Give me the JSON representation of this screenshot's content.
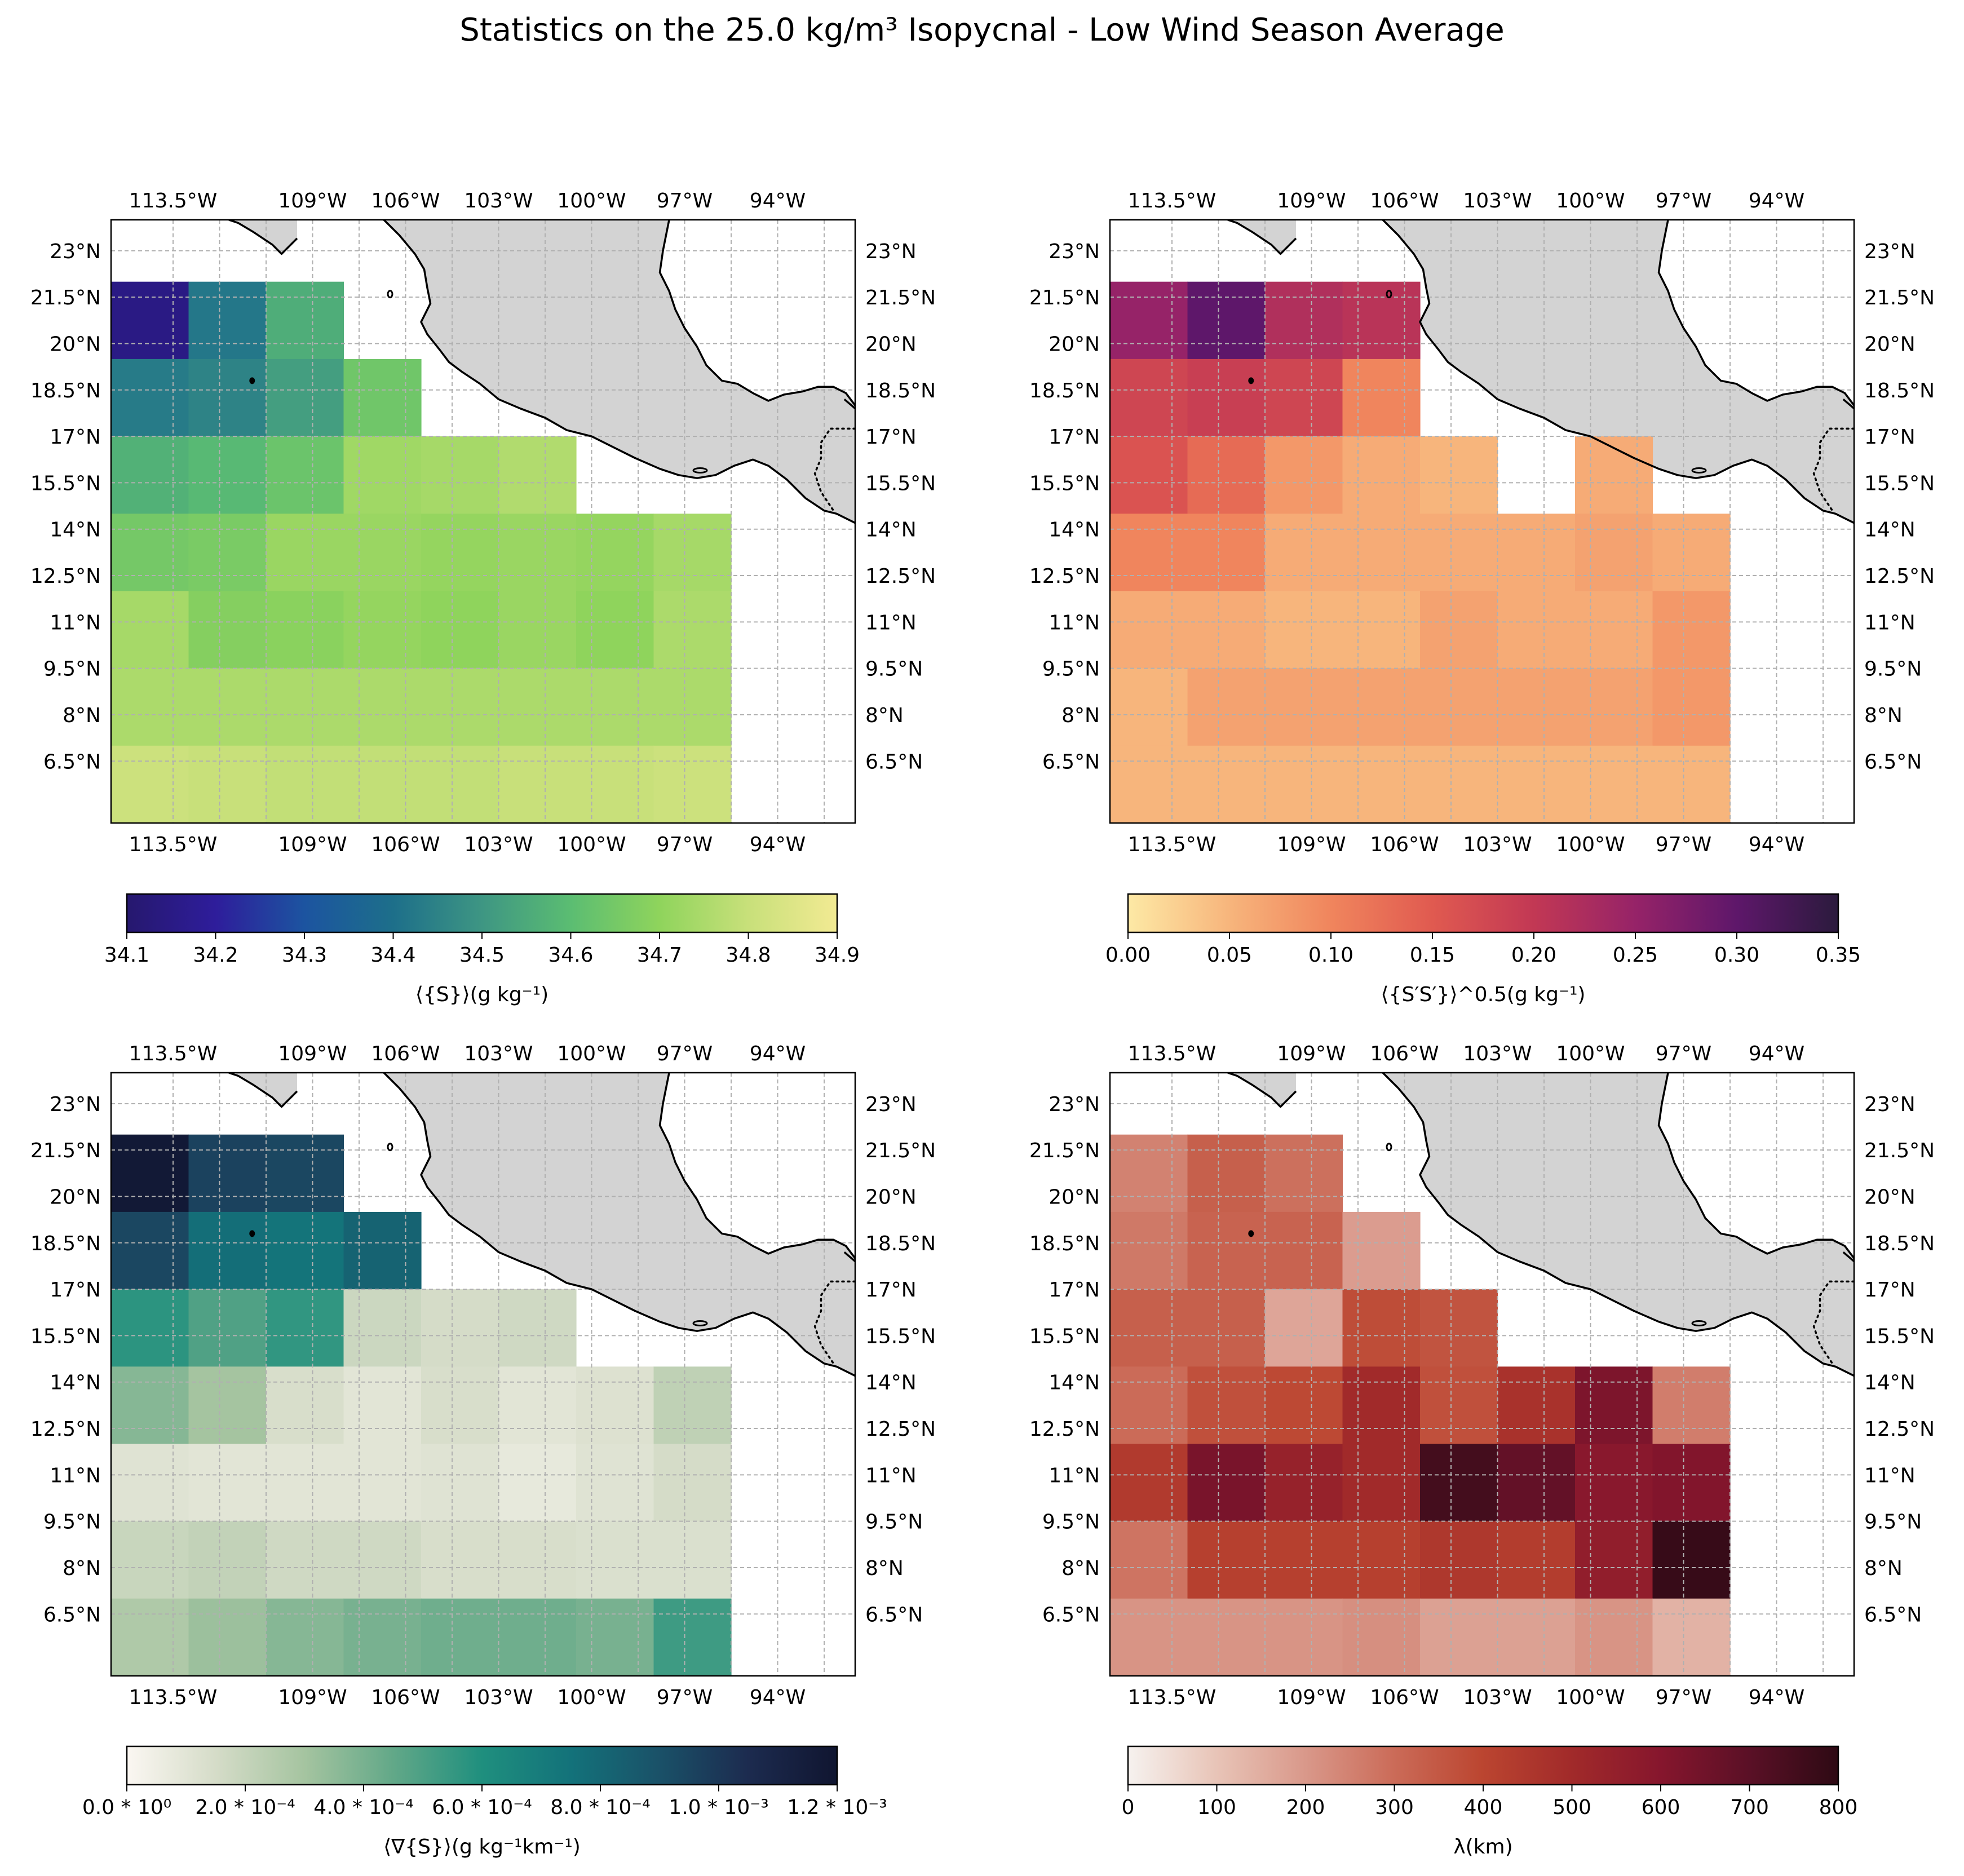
{
  "figure_title": "Statistics on the 25.0 kg/m³ Isopycnal - Low Wind Season Average",
  "map": {
    "lon_ticks": [
      "113.5°W",
      "109°W",
      "106°W",
      "103°W",
      "100°W",
      "97°W",
      "94°W"
    ],
    "lon_tick_values": [
      -113.5,
      -109,
      -106,
      -103,
      -100,
      -97,
      -94
    ],
    "lat_ticks": [
      "23°N",
      "21.5°N",
      "20°N",
      "18.5°N",
      "17°N",
      "15.5°N",
      "14°N",
      "12.5°N",
      "11°N",
      "9.5°N",
      "8°N",
      "6.5°N"
    ],
    "lat_tick_values": [
      23,
      21.5,
      20,
      18.5,
      17,
      15.5,
      14,
      12.5,
      11,
      9.5,
      8,
      6.5
    ],
    "lon_range": [
      -115.5,
      -91.5
    ],
    "lat_range": [
      4.5,
      24
    ],
    "cell_lon_edges": [
      -115.5,
      -113,
      -110.5,
      -108,
      -105.5,
      -103,
      -100.5,
      -98,
      -95.5
    ],
    "cell_lat_edges": [
      22,
      19.5,
      17,
      14.5,
      12,
      9.5,
      7,
      4.5
    ],
    "land_color": "#d3d3d3",
    "coast_color": "#000000",
    "grid_color": "#b0b0b0"
  },
  "chart_data": [
    {
      "type": "heatmap",
      "panel": "top-left",
      "colorbar_label": "⟨{S}⟩(g kg⁻¹)",
      "colorbar_ticks": [
        "34.1",
        "34.2",
        "34.3",
        "34.4",
        "34.5",
        "34.6",
        "34.7",
        "34.8",
        "34.9"
      ],
      "vmin": 34.1,
      "vmax": 34.9,
      "colormap": [
        "#26186e",
        "#2e1d9b",
        "#1c54a0",
        "#1d6f8a",
        "#3e9683",
        "#5bbd72",
        "#8fd45c",
        "#c8e07a",
        "#f2ea93"
      ],
      "rows": [
        [
          34.15,
          34.42,
          34.56,
          null,
          null,
          null,
          null,
          null
        ],
        [
          34.43,
          34.45,
          34.52,
          34.64,
          null,
          null,
          null,
          null
        ],
        [
          34.57,
          34.59,
          34.63,
          34.73,
          34.74,
          34.76,
          null,
          null
        ],
        [
          34.65,
          34.66,
          34.72,
          34.72,
          34.71,
          34.72,
          34.71,
          34.74
        ],
        [
          34.74,
          34.68,
          34.69,
          34.71,
          34.7,
          34.72,
          34.7,
          34.75
        ],
        [
          34.75,
          34.75,
          34.75,
          34.75,
          34.75,
          34.75,
          34.75,
          34.75
        ],
        [
          34.81,
          34.8,
          34.79,
          34.79,
          34.79,
          34.8,
          34.8,
          34.81
        ]
      ]
    },
    {
      "type": "heatmap",
      "panel": "top-right",
      "colorbar_label": "⟨{S′S′}⟩^0.5(g kg⁻¹)",
      "colorbar_ticks": [
        "0.00",
        "0.05",
        "0.10",
        "0.15",
        "0.20",
        "0.25",
        "0.30",
        "0.35"
      ],
      "vmin": 0.0,
      "vmax": 0.35,
      "colormap": [
        "#fde9a5",
        "#f7b57c",
        "#f0855d",
        "#e05a50",
        "#c23854",
        "#962368",
        "#5e176a",
        "#2b1a3d"
      ],
      "rows": [
        [
          0.25,
          0.3,
          0.22,
          0.21,
          null,
          null,
          null,
          null
        ],
        [
          0.18,
          0.19,
          0.18,
          0.1,
          null,
          null,
          null,
          null
        ],
        [
          0.16,
          0.13,
          0.08,
          0.06,
          0.05,
          null,
          0.06,
          null
        ],
        [
          0.1,
          0.1,
          0.06,
          0.06,
          0.06,
          0.06,
          0.07,
          0.06
        ],
        [
          0.06,
          0.06,
          0.05,
          0.05,
          0.07,
          0.06,
          0.06,
          0.08
        ],
        [
          0.05,
          0.07,
          0.07,
          0.07,
          0.07,
          0.07,
          0.07,
          0.08
        ],
        [
          0.05,
          0.05,
          0.05,
          0.05,
          0.05,
          0.05,
          0.05,
          0.05
        ]
      ]
    },
    {
      "type": "heatmap",
      "panel": "bottom-left",
      "colorbar_label": "⟨∇{S}⟩(g kg⁻¹km⁻¹)",
      "colorbar_ticks": [
        "0.0 * 10⁰",
        "2.0 * 10⁻⁴",
        "4.0 * 10⁻⁴",
        "6.0 * 10⁻⁴",
        "8.0 * 10⁻⁴",
        "1.0 * 10⁻³",
        "1.2 * 10⁻³"
      ],
      "vmin": 0.0,
      "vmax": 0.0012,
      "colormap": [
        "#fbf7f2",
        "#d5dcc8",
        "#a5c4a0",
        "#62a888",
        "#1f8f7e",
        "#13727a",
        "#1a5168",
        "#1c2b4f",
        "#101530"
      ],
      "rows": [
        [
          0.00117,
          0.00096,
          0.00094,
          null,
          null,
          null,
          null,
          null
        ],
        [
          0.00094,
          0.00077,
          0.00074,
          0.00082,
          null,
          null,
          null,
          null
        ],
        [
          0.00057,
          0.00049,
          0.00056,
          0.00018,
          0.00015,
          0.00017,
          null,
          null
        ],
        [
          0.00037,
          0.0003,
          0.00014,
          0.0001,
          0.00014,
          0.0001,
          0.00012,
          0.00022
        ],
        [
          0.00011,
          0.0001,
          0.0001,
          0.0001,
          0.00011,
          8e-05,
          0.00011,
          0.00015
        ],
        [
          0.00019,
          0.00021,
          0.00017,
          0.00017,
          0.00014,
          0.00014,
          0.00013,
          0.00013
        ],
        [
          0.00027,
          0.00032,
          0.00037,
          0.0004,
          0.00042,
          0.00042,
          0.0004,
          0.00053
        ]
      ]
    },
    {
      "type": "heatmap",
      "panel": "bottom-right",
      "colorbar_label": "λ(km)",
      "colorbar_ticks": [
        "0",
        "100",
        "200",
        "300",
        "400",
        "500",
        "600",
        "700",
        "800"
      ],
      "vmin": 0,
      "vmax": 800,
      "colormap": [
        "#f6f2ef",
        "#e8c4b7",
        "#d9988a",
        "#cb6b58",
        "#bb4530",
        "#a12a2a",
        "#86162d",
        "#5a1026",
        "#2e0a14"
      ],
      "rows": [
        [
          250,
          330,
          290,
          null,
          null,
          null,
          null,
          null
        ],
        [
          270,
          320,
          320,
          190,
          null,
          null,
          null,
          null
        ],
        [
          330,
          330,
          170,
          380,
          360,
          null,
          null,
          null
        ],
        [
          300,
          370,
          390,
          500,
          370,
          470,
          620,
          260
        ],
        [
          440,
          630,
          540,
          500,
          750,
          680,
          590,
          610
        ],
        [
          280,
          420,
          420,
          420,
          450,
          430,
          560,
          780
        ],
        [
          210,
          210,
          210,
          220,
          180,
          180,
          210,
          140
        ]
      ]
    }
  ]
}
